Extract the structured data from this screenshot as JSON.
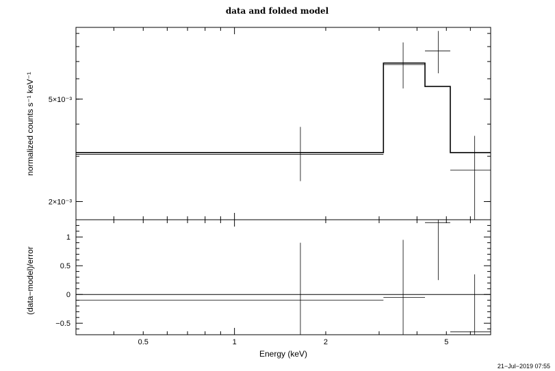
{
  "chart_data": [
    {
      "type": "line",
      "title": "data and folded model",
      "xlabel": "",
      "ylabel": "normalized counts s⁻¹ keV⁻¹",
      "x_scale": "log",
      "y_scale": "log",
      "xlim": [
        0.3,
        7.0
      ],
      "ylim": [
        0.0017,
        0.0095
      ],
      "y_tick_labels": [
        {
          "value": 0.005,
          "label": "5×10⁻³"
        },
        {
          "value": 0.002,
          "label": "2×10⁻³"
        }
      ],
      "series": [
        {
          "kind": "data",
          "points": [
            {
              "x_lo": 0.3,
              "x_hi": 3.1,
              "x": 1.65,
              "y": 0.00305,
              "y_lo": 0.0024,
              "y_hi": 0.0039
            },
            {
              "x_lo": 3.1,
              "x_hi": 4.25,
              "x": 3.6,
              "y": 0.0068,
              "y_lo": 0.0055,
              "y_hi": 0.0083
            },
            {
              "x_lo": 4.25,
              "x_hi": 5.15,
              "x": 4.7,
              "y": 0.0077,
              "y_lo": 0.0063,
              "y_hi": 0.0092
            },
            {
              "x_lo": 5.15,
              "x_hi": 7.0,
              "x": 6.2,
              "y": 0.00265,
              "y_lo": 0.0017,
              "y_hi": 0.0036
            }
          ]
        },
        {
          "kind": "model",
          "steps": [
            {
              "x_lo": 0.3,
              "x_hi": 3.1,
              "y": 0.0031
            },
            {
              "x_lo": 3.1,
              "x_hi": 4.25,
              "y": 0.0069
            },
            {
              "x_lo": 4.25,
              "x_hi": 5.15,
              "y": 0.0056
            },
            {
              "x_lo": 5.15,
              "x_hi": 7.0,
              "y": 0.0031
            }
          ]
        }
      ]
    },
    {
      "type": "line",
      "xlabel": "Energy (keV)",
      "ylabel": "(data−model)/error",
      "x_scale": "log",
      "xlim": [
        0.3,
        7.0
      ],
      "ylim": [
        -0.7,
        1.3
      ],
      "x_tick_labels": [
        {
          "value": 0.5,
          "label": "0.5"
        },
        {
          "value": 1,
          "label": "1"
        },
        {
          "value": 2,
          "label": "2"
        },
        {
          "value": 5,
          "label": "5"
        }
      ],
      "y_tick_labels": [
        {
          "value": 1,
          "label": "1"
        },
        {
          "value": 0.5,
          "label": "0.5"
        },
        {
          "value": 0,
          "label": "0"
        },
        {
          "value": -0.5,
          "label": "−0.5"
        }
      ],
      "reference_line": 0,
      "series": [
        {
          "kind": "residuals",
          "points": [
            {
              "x_lo": 0.3,
              "x_hi": 3.1,
              "x": 1.65,
              "y": -0.1,
              "y_lo": -0.7,
              "y_hi": 0.9
            },
            {
              "x_lo": 3.1,
              "x_hi": 4.25,
              "x": 3.6,
              "y": -0.05,
              "y_lo": -0.7,
              "y_hi": 0.95
            },
            {
              "x_lo": 4.25,
              "x_hi": 5.15,
              "x": 4.7,
              "y": 1.25,
              "y_lo": 0.25,
              "y_hi": 1.3
            },
            {
              "x_lo": 5.15,
              "x_hi": 7.0,
              "x": 6.2,
              "y": -0.65,
              "y_lo": -0.7,
              "y_hi": 0.35
            }
          ]
        }
      ]
    }
  ],
  "timestamp": "21−Jul−2019 07:55"
}
